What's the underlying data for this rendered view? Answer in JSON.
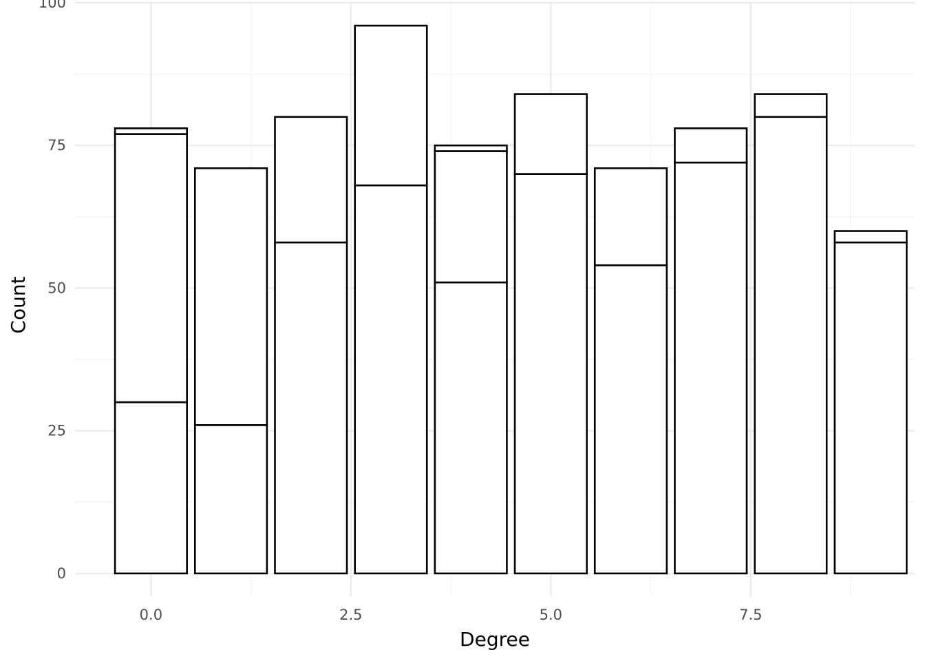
{
  "chart_data": {
    "type": "bar",
    "stacked": true,
    "title": "",
    "xlabel": "Degree",
    "ylabel": "Count",
    "x": [
      0,
      1,
      2,
      3,
      4,
      5,
      6,
      7,
      8,
      9
    ],
    "series": [
      {
        "values": [
          30,
          26,
          58,
          68,
          51,
          70,
          54,
          72,
          80,
          58
        ]
      },
      {
        "values": [
          47,
          45,
          22,
          28,
          23,
          14,
          17,
          6,
          4,
          0
        ]
      },
      {
        "values": [
          1,
          0,
          0,
          0,
          1,
          0,
          0,
          0,
          0,
          2
        ]
      }
    ],
    "totals": [
      78,
      71,
      80,
      96,
      75,
      84,
      71,
      78,
      84,
      60
    ],
    "xlim": [
      -0.95,
      9.55
    ],
    "ylim": [
      -4,
      100
    ],
    "x_ticks": [
      "0.0",
      "2.5",
      "5.0",
      "7.5"
    ],
    "x_tick_values": [
      0,
      2.5,
      5,
      7.5
    ],
    "y_ticks": [
      "0",
      "25",
      "50",
      "75",
      "100"
    ],
    "y_tick_values": [
      0,
      25,
      50,
      75,
      100
    ],
    "grid": true,
    "legend": "none"
  }
}
